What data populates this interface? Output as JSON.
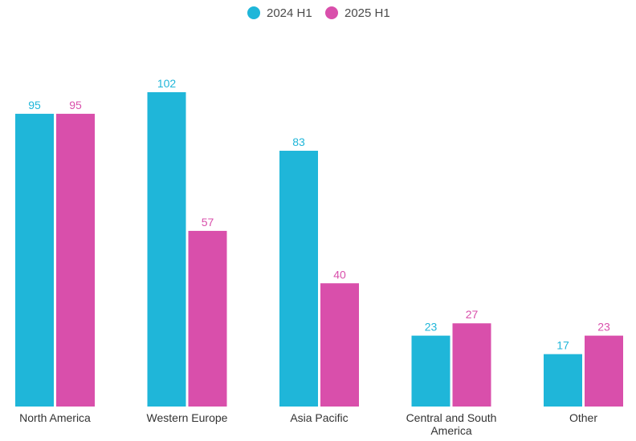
{
  "chart_data": {
    "type": "bar",
    "title": "",
    "xlabel": "",
    "ylabel": "",
    "categories": [
      "North America",
      "Western Europe",
      "Asia Pacific",
      "Central and South America",
      "Other"
    ],
    "categories_display": [
      [
        "North America"
      ],
      [
        "Western Europe"
      ],
      [
        "Asia Pacific"
      ],
      [
        "Central and South",
        "America"
      ],
      [
        "Other"
      ]
    ],
    "series": [
      {
        "name": "2024 H1",
        "color": "#1fb6d9",
        "values": [
          95,
          102,
          83,
          23,
          17
        ]
      },
      {
        "name": "2025 H1",
        "color": "#d94fab",
        "values": [
          95,
          57,
          40,
          27,
          23
        ]
      }
    ],
    "ylim": [
      0,
      102
    ],
    "grid": false,
    "legend": "top-center",
    "data_labels": true
  }
}
